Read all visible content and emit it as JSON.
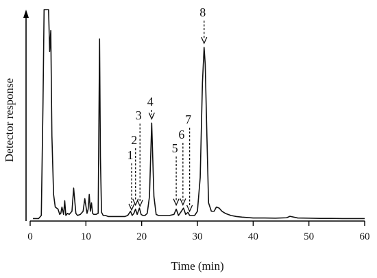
{
  "chart_data": {
    "type": "line",
    "title": "",
    "xlabel": "Time (min)",
    "ylabel": "Detector response",
    "xlim": [
      0,
      60
    ],
    "xticks": [
      0,
      10,
      20,
      30,
      40,
      50,
      60
    ],
    "ylim": [
      0,
      100
    ],
    "y_tick_labels_shown": false,
    "grid": false,
    "legend": "none",
    "series": [
      {
        "x": [
          0.5,
          1.5,
          2.0,
          2.3,
          2.5,
          2.7,
          3.0,
          3.3,
          3.5,
          3.7,
          3.9,
          4.2,
          4.5,
          5.0,
          5.3,
          5.5,
          5.7,
          6.0,
          6.2,
          6.4,
          6.7,
          7.0,
          7.5,
          7.8,
          8.0,
          8.2,
          8.5,
          9.0,
          9.5,
          9.8,
          10.2,
          10.4,
          10.6,
          10.8,
          11.0,
          11.2,
          11.4,
          11.8,
          12.2,
          12.45,
          12.6,
          12.8,
          13.1,
          13.5,
          14.0,
          15.0,
          16.0,
          17.0,
          17.5,
          18.0,
          18.3,
          18.6,
          18.9,
          19.2,
          19.6,
          19.9,
          20.2,
          20.6,
          21.0,
          21.4,
          21.8,
          22.2,
          22.6,
          23.0,
          24.0,
          25.0,
          25.8,
          26.2,
          26.6,
          27.0,
          27.5,
          27.9,
          28.3,
          28.6,
          29.0,
          29.5,
          30.0,
          30.5,
          30.9,
          31.2,
          31.4,
          31.7,
          32.0,
          32.5,
          33.0,
          33.4,
          33.9,
          34.4,
          35.0,
          36.0,
          37.0,
          38.0,
          39.0,
          40.0,
          42.0,
          44.0,
          46.0,
          46.6,
          48.0,
          50.0,
          52.0,
          54.0,
          56.0,
          58.0,
          60.0
        ],
        "y": [
          0.5,
          0.5,
          2.0,
          55.0,
          100.0,
          100.0,
          100.0,
          100.0,
          80.0,
          90.0,
          40.0,
          12.0,
          6.0,
          5.0,
          2.5,
          3.0,
          6.0,
          2.5,
          9.0,
          2.0,
          3.0,
          2.5,
          4.0,
          15.0,
          9.0,
          3.0,
          2.0,
          2.5,
          4.0,
          10.0,
          3.0,
          5.0,
          12.0,
          4.0,
          8.0,
          3.0,
          2.5,
          2.5,
          3.0,
          86.0,
          30.0,
          3.5,
          2.0,
          2.0,
          1.5,
          1.5,
          1.5,
          1.5,
          2.0,
          4.0,
          2.0,
          3.0,
          5.0,
          2.5,
          5.5,
          2.5,
          2.0,
          2.0,
          3.0,
          11.0,
          46.0,
          11.0,
          2.5,
          2.0,
          2.0,
          2.0,
          2.5,
          5.0,
          2.0,
          3.5,
          5.5,
          2.5,
          3.5,
          2.0,
          2.0,
          2.0,
          4.0,
          20.0,
          65.0,
          82.0,
          74.0,
          40.0,
          8.0,
          4.0,
          4.0,
          6.0,
          5.5,
          4.0,
          3.0,
          2.0,
          1.5,
          1.2,
          1.0,
          0.8,
          0.8,
          0.7,
          0.9,
          1.6,
          0.8,
          0.7,
          0.6,
          0.6,
          0.5,
          0.5,
          0.5
        ]
      }
    ],
    "peak_markers": [
      {
        "label": "1",
        "x": 18.2
      },
      {
        "label": "2",
        "x": 18.9
      },
      {
        "label": "3",
        "x": 19.7
      },
      {
        "label": "4",
        "x": 21.8
      },
      {
        "label": "5",
        "x": 26.2
      },
      {
        "label": "6",
        "x": 27.4
      },
      {
        "label": "7",
        "x": 28.6
      },
      {
        "label": "8",
        "x": 31.2
      }
    ]
  }
}
